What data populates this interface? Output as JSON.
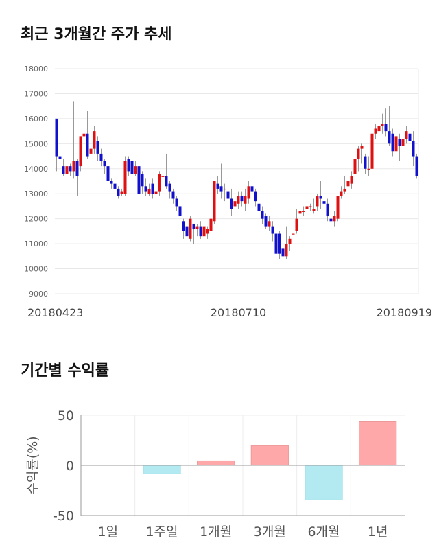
{
  "titles": {
    "price_trend": "최근 3개월간 주가 추세",
    "returns": "기간별 수익률"
  },
  "colors": {
    "up": "#dd1111",
    "down": "#1111cc",
    "wick": "#999999",
    "positive_bar": "#ffa8aa",
    "negative_bar": "#b3eaf2",
    "grid": "#e8e8e8"
  },
  "chart_data": [
    {
      "type": "candlestick",
      "title": "최근 3개월간 주가 추세",
      "ylim": [
        9000,
        18000
      ],
      "yticks": [
        9000,
        10000,
        11000,
        12000,
        13000,
        14000,
        15000,
        16000,
        17000,
        18000
      ],
      "xtick_labels": [
        "20180423",
        "20180710",
        "20180919"
      ],
      "xtick_positions": [
        0,
        53,
        106
      ],
      "grid": true,
      "candles": [
        [
          16000,
          14500,
          16000,
          13900
        ],
        [
          14500,
          14400,
          14800,
          14100
        ],
        [
          14100,
          13800,
          14400,
          13700
        ],
        [
          13800,
          14100,
          14300,
          13700
        ],
        [
          14100,
          13900,
          14200,
          13700
        ],
        [
          13900,
          14300,
          16700,
          13600
        ],
        [
          14300,
          13700,
          14400,
          12900
        ],
        [
          14100,
          15300,
          15300,
          13900
        ],
        [
          15300,
          15400,
          16200,
          15100
        ],
        [
          15400,
          14500,
          16300,
          14400
        ],
        [
          14600,
          14800,
          15500,
          14300
        ],
        [
          14800,
          15500,
          15700,
          14600
        ],
        [
          15100,
          14600,
          15300,
          14300
        ],
        [
          14600,
          14300,
          14800,
          14100
        ],
        [
          14300,
          14100,
          14400,
          13800
        ],
        [
          14100,
          13500,
          14200,
          13300
        ],
        [
          13500,
          13400,
          13600,
          13200
        ],
        [
          13400,
          13200,
          13500,
          12900
        ],
        [
          13200,
          12900,
          13300,
          12800
        ],
        [
          13000,
          13100,
          13200,
          12900
        ],
        [
          13000,
          14300,
          14500,
          12900
        ],
        [
          14400,
          13900,
          14500,
          13700
        ],
        [
          14300,
          13800,
          14400,
          13600
        ],
        [
          13800,
          14100,
          14300,
          13700
        ],
        [
          14100,
          13000,
          15700,
          12900
        ],
        [
          13800,
          13300,
          13900,
          13000
        ],
        [
          13300,
          13100,
          13600,
          12900
        ],
        [
          13000,
          13200,
          13400,
          12900
        ],
        [
          13400,
          13000,
          13600,
          12800
        ],
        [
          13000,
          13100,
          13300,
          12900
        ],
        [
          13100,
          13800,
          13900,
          12900
        ],
        [
          13700,
          13700,
          13800,
          13400
        ],
        [
          13700,
          13300,
          14600,
          13200
        ],
        [
          13400,
          13100,
          13500,
          12800
        ],
        [
          13100,
          12800,
          13200,
          12600
        ],
        [
          12800,
          12500,
          12900,
          12300
        ],
        [
          12500,
          12100,
          12600,
          11800
        ],
        [
          11900,
          11500,
          12000,
          11200
        ],
        [
          11700,
          11300,
          11800,
          11000
        ],
        [
          11200,
          12000,
          12100,
          11100
        ],
        [
          11800,
          11600,
          11800,
          11000
        ],
        [
          11600,
          11700,
          11800,
          11300
        ],
        [
          11700,
          11300,
          11900,
          11200
        ],
        [
          11300,
          11700,
          11800,
          11200
        ],
        [
          11400,
          11600,
          11700,
          11200
        ],
        [
          11500,
          12000,
          12100,
          11300
        ],
        [
          11900,
          13500,
          13500,
          11800
        ],
        [
          13400,
          13200,
          13700,
          13000
        ],
        [
          13300,
          13100,
          14200,
          12800
        ],
        [
          13200,
          13200,
          13400,
          12700
        ],
        [
          13100,
          12800,
          14700,
          12400
        ],
        [
          12800,
          12400,
          13200,
          12100
        ],
        [
          12500,
          12700,
          12900,
          12200
        ],
        [
          12600,
          12900,
          13100,
          12400
        ],
        [
          12900,
          12700,
          13100,
          12500
        ],
        [
          12600,
          12900,
          13200,
          12300
        ],
        [
          12800,
          13300,
          13500,
          12600
        ],
        [
          13300,
          13100,
          13400,
          12900
        ],
        [
          13100,
          12700,
          13200,
          12500
        ],
        [
          12600,
          12300,
          12700,
          12200
        ],
        [
          12300,
          12000,
          12500,
          11800
        ],
        [
          12100,
          11700,
          12200,
          11600
        ],
        [
          11700,
          11900,
          12100,
          11500
        ],
        [
          11700,
          11400,
          11900,
          11100
        ],
        [
          11400,
          10600,
          11500,
          10500
        ],
        [
          11400,
          10600,
          11500,
          10400
        ],
        [
          10800,
          10500,
          12200,
          10200
        ],
        [
          10500,
          11000,
          11700,
          10400
        ],
        [
          11000,
          11200,
          11300,
          10700
        ],
        [
          11400,
          11400,
          11400,
          11400
        ],
        [
          11500,
          12000,
          12400,
          11400
        ],
        [
          12200,
          12300,
          12600,
          12000
        ],
        [
          12300,
          12300,
          12500,
          12100
        ],
        [
          12400,
          12500,
          12800,
          12300
        ],
        [
          12500,
          12500,
          12600,
          12300
        ],
        [
          12300,
          12400,
          12800,
          12200
        ],
        [
          12500,
          12900,
          13000,
          12300
        ],
        [
          12900,
          12800,
          13500,
          12400
        ],
        [
          12700,
          12600,
          13100,
          12400
        ],
        [
          12600,
          12100,
          12800,
          11900
        ],
        [
          12000,
          11900,
          12300,
          11800
        ],
        [
          11900,
          12100,
          12300,
          11700
        ],
        [
          12000,
          12900,
          12900,
          11900
        ],
        [
          12900,
          13100,
          13300,
          12800
        ],
        [
          13100,
          13200,
          13700,
          13000
        ],
        [
          13300,
          13500,
          13600,
          13200
        ],
        [
          13400,
          13700,
          13900,
          13200
        ],
        [
          13800,
          14400,
          14500,
          13300
        ],
        [
          14400,
          14800,
          14900,
          13900
        ],
        [
          14800,
          14900,
          15000,
          14200
        ],
        [
          14500,
          14000,
          14600,
          13800
        ],
        [
          14000,
          14000,
          14500,
          13700
        ],
        [
          14000,
          15400,
          15600,
          13600
        ],
        [
          15400,
          15600,
          15800,
          15200
        ],
        [
          15500,
          15700,
          16700,
          15100
        ],
        [
          15700,
          15800,
          16200,
          15400
        ],
        [
          15800,
          15500,
          16400,
          15300
        ],
        [
          15500,
          15000,
          16500,
          14900
        ],
        [
          15400,
          14700,
          15600,
          14500
        ],
        [
          14700,
          15300,
          15400,
          14500
        ],
        [
          15200,
          14900,
          15400,
          14300
        ],
        [
          14900,
          15200,
          15400,
          14700
        ],
        [
          15200,
          15500,
          15700,
          15000
        ],
        [
          15400,
          15100,
          15600,
          14800
        ],
        [
          15100,
          14500,
          15500,
          14100
        ],
        [
          14500,
          13700,
          14600,
          13600
        ]
      ]
    },
    {
      "type": "bar",
      "categories": [
        "1일",
        "1주일",
        "1개월",
        "3개월",
        "6개월",
        "1년"
      ],
      "values": [
        0,
        -8.5,
        4.5,
        19.5,
        -34.5,
        43.5
      ],
      "ylabel": "수익률(%)",
      "ylim": [
        -50,
        50
      ],
      "yticks": [
        50,
        0,
        -50
      ],
      "grid": true
    }
  ]
}
